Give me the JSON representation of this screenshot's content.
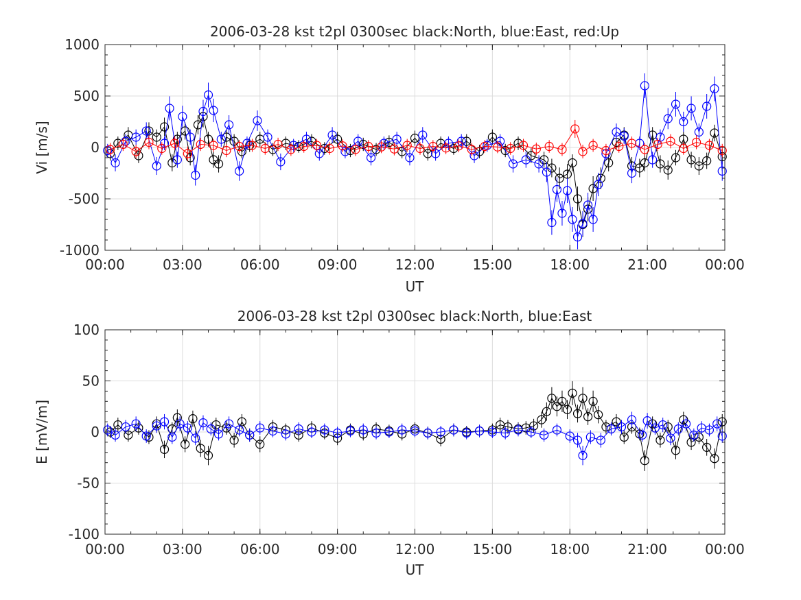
{
  "chart_data": [
    {
      "type": "scatter",
      "title": "2006-03-28 kst t2pl 0300sec black:North, blue:East, red:Up",
      "xlabel": "UT",
      "ylabel": "Vi [m/s]",
      "xlim": [
        0,
        24
      ],
      "ylim": [
        -1000,
        1000
      ],
      "x_ticks": [
        "00:00",
        "03:00",
        "06:00",
        "09:00",
        "12:00",
        "15:00",
        "18:00",
        "21:00",
        "00:00"
      ],
      "y_ticks": [
        "-1000",
        "-500",
        "0",
        "500",
        "1000"
      ],
      "grid": true,
      "sample_interval_hours": 0.0833,
      "series": [
        {
          "name": "North",
          "color": "#000000",
          "x": [
            0.2,
            0.5,
            0.9,
            1.3,
            1.7,
            2.0,
            2.3,
            2.6,
            2.8,
            3.1,
            3.3,
            3.6,
            3.8,
            4.0,
            4.2,
            4.4,
            4.7,
            5.0,
            5.3,
            5.6,
            6.0,
            6.5,
            7.0,
            7.5,
            8.0,
            8.5,
            9.0,
            9.5,
            10.0,
            10.5,
            11.0,
            11.5,
            12.0,
            12.5,
            13.0,
            13.5,
            14.0,
            14.5,
            15.0,
            15.5,
            16.0,
            16.5,
            17.0,
            17.3,
            17.6,
            17.9,
            18.1,
            18.3,
            18.5,
            18.7,
            18.9,
            19.2,
            19.5,
            19.8,
            20.1,
            20.4,
            20.7,
            20.9,
            21.2,
            21.5,
            21.8,
            22.1,
            22.4,
            22.7,
            23.0,
            23.3,
            23.6,
            23.9
          ],
          "y": [
            -60,
            40,
            120,
            -80,
            160,
            100,
            200,
            -150,
            80,
            160,
            -100,
            220,
            300,
            80,
            -120,
            -160,
            100,
            60,
            -40,
            20,
            80,
            -20,
            40,
            10,
            60,
            -10,
            80,
            -30,
            30,
            -20,
            50,
            -40,
            90,
            -60,
            40,
            -10,
            60,
            -40,
            100,
            -30,
            40,
            -80,
            -120,
            -200,
            -300,
            -260,
            -150,
            -500,
            -750,
            -600,
            -400,
            -300,
            -150,
            50,
            120,
            -180,
            -200,
            -150,
            120,
            -160,
            -220,
            -100,
            80,
            -120,
            -180,
            -130,
            140,
            -90
          ]
        },
        {
          "name": "East",
          "color": "#0000ff",
          "x": [
            0.1,
            0.4,
            0.8,
            1.2,
            1.6,
            2.0,
            2.3,
            2.5,
            2.8,
            3.0,
            3.3,
            3.5,
            3.8,
            4.0,
            4.2,
            4.5,
            4.8,
            5.2,
            5.5,
            5.9,
            6.3,
            6.8,
            7.3,
            7.8,
            8.3,
            8.8,
            9.3,
            9.8,
            10.3,
            10.8,
            11.3,
            11.8,
            12.3,
            12.8,
            13.3,
            13.8,
            14.3,
            14.8,
            15.3,
            15.8,
            16.3,
            16.8,
            17.1,
            17.3,
            17.5,
            17.7,
            17.9,
            18.1,
            18.3,
            18.5,
            18.7,
            18.9,
            19.1,
            19.4,
            19.8,
            20.1,
            20.4,
            20.7,
            20.9,
            21.2,
            21.5,
            21.8,
            22.1,
            22.4,
            22.7,
            23.0,
            23.3,
            23.6,
            23.9
          ],
          "y": [
            -30,
            -150,
            60,
            100,
            160,
            -180,
            40,
            380,
            -120,
            300,
            100,
            -270,
            350,
            510,
            360,
            80,
            220,
            -230,
            40,
            260,
            100,
            -140,
            20,
            80,
            -60,
            120,
            -40,
            60,
            -100,
            40,
            80,
            -100,
            120,
            -60,
            40,
            60,
            -80,
            20,
            60,
            -160,
            -120,
            -160,
            -240,
            -730,
            -410,
            -640,
            -420,
            -700,
            -870,
            -740,
            -560,
            -700,
            -360,
            -60,
            150,
            110,
            -250,
            40,
            600,
            -120,
            100,
            280,
            420,
            250,
            380,
            150,
            400,
            570,
            -230
          ]
        },
        {
          "name": "Up",
          "color": "#ff0000",
          "x": [
            0.2,
            0.7,
            1.2,
            1.7,
            2.2,
            2.7,
            3.2,
            3.7,
            4.2,
            4.7,
            5.2,
            5.7,
            6.2,
            6.7,
            7.2,
            7.7,
            8.2,
            8.7,
            9.2,
            9.7,
            10.2,
            10.7,
            11.2,
            11.7,
            12.2,
            12.7,
            13.2,
            13.7,
            14.2,
            14.7,
            15.2,
            15.7,
            16.2,
            16.7,
            17.2,
            17.7,
            18.2,
            18.5,
            18.9,
            19.4,
            19.9,
            20.4,
            20.9,
            21.4,
            21.9,
            22.4,
            22.9,
            23.4,
            23.9
          ],
          "y": [
            -20,
            30,
            -40,
            50,
            -10,
            40,
            -60,
            30,
            20,
            -30,
            10,
            20,
            -10,
            30,
            -20,
            10,
            20,
            -10,
            15,
            -20,
            10,
            5,
            -15,
            20,
            -10,
            10,
            -5,
            15,
            -20,
            10,
            5,
            -10,
            20,
            -15,
            10,
            -20,
            180,
            -40,
            20,
            -30,
            10,
            40,
            -20,
            30,
            60,
            -10,
            50,
            20,
            -30
          ]
        }
      ]
    },
    {
      "type": "scatter",
      "title": "2006-03-28 kst t2pl 0300sec black:North, blue:East",
      "xlabel": "UT",
      "ylabel": "E [mV/m]",
      "xlim": [
        0,
        24
      ],
      "ylim": [
        -100,
        100
      ],
      "x_ticks": [
        "00:00",
        "03:00",
        "06:00",
        "09:00",
        "12:00",
        "15:00",
        "18:00",
        "21:00",
        "00:00"
      ],
      "y_ticks": [
        "-100",
        "-50",
        "0",
        "50",
        "100"
      ],
      "grid": true,
      "sample_interval_hours": 0.0833,
      "series": [
        {
          "name": "North",
          "color": "#000000",
          "x": [
            0.2,
            0.5,
            0.9,
            1.3,
            1.7,
            2.0,
            2.3,
            2.6,
            2.8,
            3.1,
            3.4,
            3.7,
            4.0,
            4.3,
            4.7,
            5.0,
            5.3,
            5.6,
            6.0,
            6.5,
            7.0,
            7.5,
            8.0,
            8.5,
            9.0,
            9.5,
            10.0,
            10.5,
            11.0,
            11.5,
            12.0,
            12.5,
            13.0,
            13.5,
            14.0,
            14.5,
            15.0,
            15.3,
            15.6,
            16.0,
            16.3,
            16.6,
            16.9,
            17.1,
            17.3,
            17.5,
            17.7,
            17.9,
            18.1,
            18.3,
            18.5,
            18.7,
            18.9,
            19.1,
            19.4,
            19.8,
            20.1,
            20.4,
            20.7,
            20.9,
            21.2,
            21.5,
            21.8,
            22.1,
            22.4,
            22.7,
            23.0,
            23.3,
            23.6,
            23.9
          ],
          "y": [
            0,
            7,
            -3,
            4,
            -5,
            8,
            -17,
            3,
            14,
            -12,
            13,
            -16,
            -23,
            7,
            4,
            -8,
            10,
            -3,
            -12,
            5,
            2,
            -3,
            4,
            -1,
            -6,
            2,
            -2,
            3,
            1,
            -2,
            3,
            -1,
            -7,
            2,
            0,
            1,
            2,
            7,
            5,
            3,
            4,
            6,
            12,
            20,
            33,
            25,
            30,
            22,
            38,
            18,
            33,
            15,
            30,
            17,
            5,
            10,
            -5,
            5,
            -2,
            -28,
            8,
            -8,
            5,
            -18,
            12,
            -10,
            -5,
            -15,
            -26,
            10
          ]
        },
        {
          "name": "East",
          "color": "#0000ff",
          "x": [
            0.1,
            0.4,
            0.8,
            1.2,
            1.6,
            2.0,
            2.3,
            2.6,
            2.9,
            3.2,
            3.5,
            3.8,
            4.1,
            4.4,
            4.8,
            5.2,
            5.6,
            6.0,
            6.5,
            7.0,
            7.5,
            8.0,
            8.5,
            9.0,
            9.5,
            10.0,
            10.5,
            11.0,
            11.5,
            12.0,
            12.5,
            13.0,
            13.5,
            14.0,
            14.5,
            15.0,
            15.5,
            16.0,
            16.5,
            17.0,
            17.5,
            18.0,
            18.3,
            18.5,
            18.8,
            19.2,
            19.6,
            20.0,
            20.4,
            20.8,
            21.0,
            21.3,
            21.6,
            21.9,
            22.2,
            22.5,
            22.8,
            23.1,
            23.4,
            23.7,
            23.9
          ],
          "y": [
            2,
            -3,
            5,
            8,
            -4,
            6,
            10,
            -5,
            8,
            4,
            -6,
            9,
            3,
            -2,
            8,
            2,
            -3,
            4,
            1,
            -2,
            3,
            0,
            2,
            -1,
            1,
            2,
            -1,
            0,
            2,
            1,
            -1,
            0,
            2,
            -1,
            1,
            0,
            -1,
            2,
            0,
            -3,
            2,
            -4,
            -8,
            -23,
            -5,
            -8,
            3,
            5,
            12,
            -3,
            11,
            4,
            7,
            -6,
            3,
            8,
            -3,
            4,
            2,
            8,
            -4
          ]
        }
      ]
    }
  ]
}
